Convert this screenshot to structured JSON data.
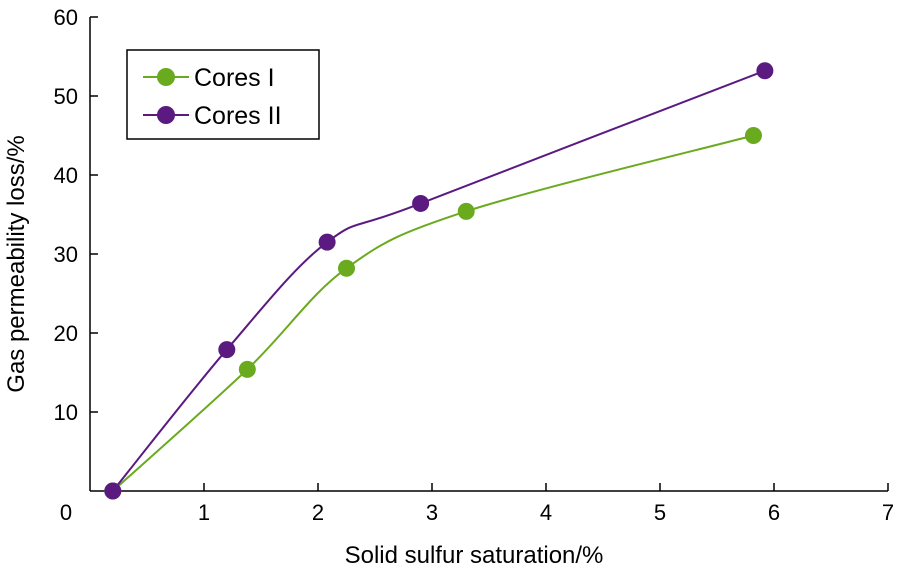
{
  "chart_data": {
    "type": "line",
    "xlabel": "Solid sulfur saturation/%",
    "ylabel": "Gas permeability loss/%",
    "xlim": [
      0,
      7
    ],
    "ylim": [
      0,
      60
    ],
    "x_ticks": [
      "0",
      "1",
      "2",
      "3",
      "4",
      "5",
      "6",
      "7"
    ],
    "y_ticks": [
      "10",
      "20",
      "30",
      "40",
      "50",
      "60"
    ],
    "grid": false,
    "legend_position": "top-left",
    "smooth": true,
    "series": [
      {
        "name": "Cores I",
        "color": "#6aaa1e",
        "x": [
          0.2,
          1.38,
          2.25,
          3.3,
          5.82
        ],
        "y": [
          0,
          15.4,
          28.2,
          35.4,
          45.0
        ]
      },
      {
        "name": "Cores II",
        "color": "#5a1a80",
        "x": [
          0.2,
          1.2,
          2.08,
          2.9,
          5.92
        ],
        "y": [
          0,
          17.9,
          31.5,
          36.4,
          53.2
        ]
      }
    ]
  }
}
